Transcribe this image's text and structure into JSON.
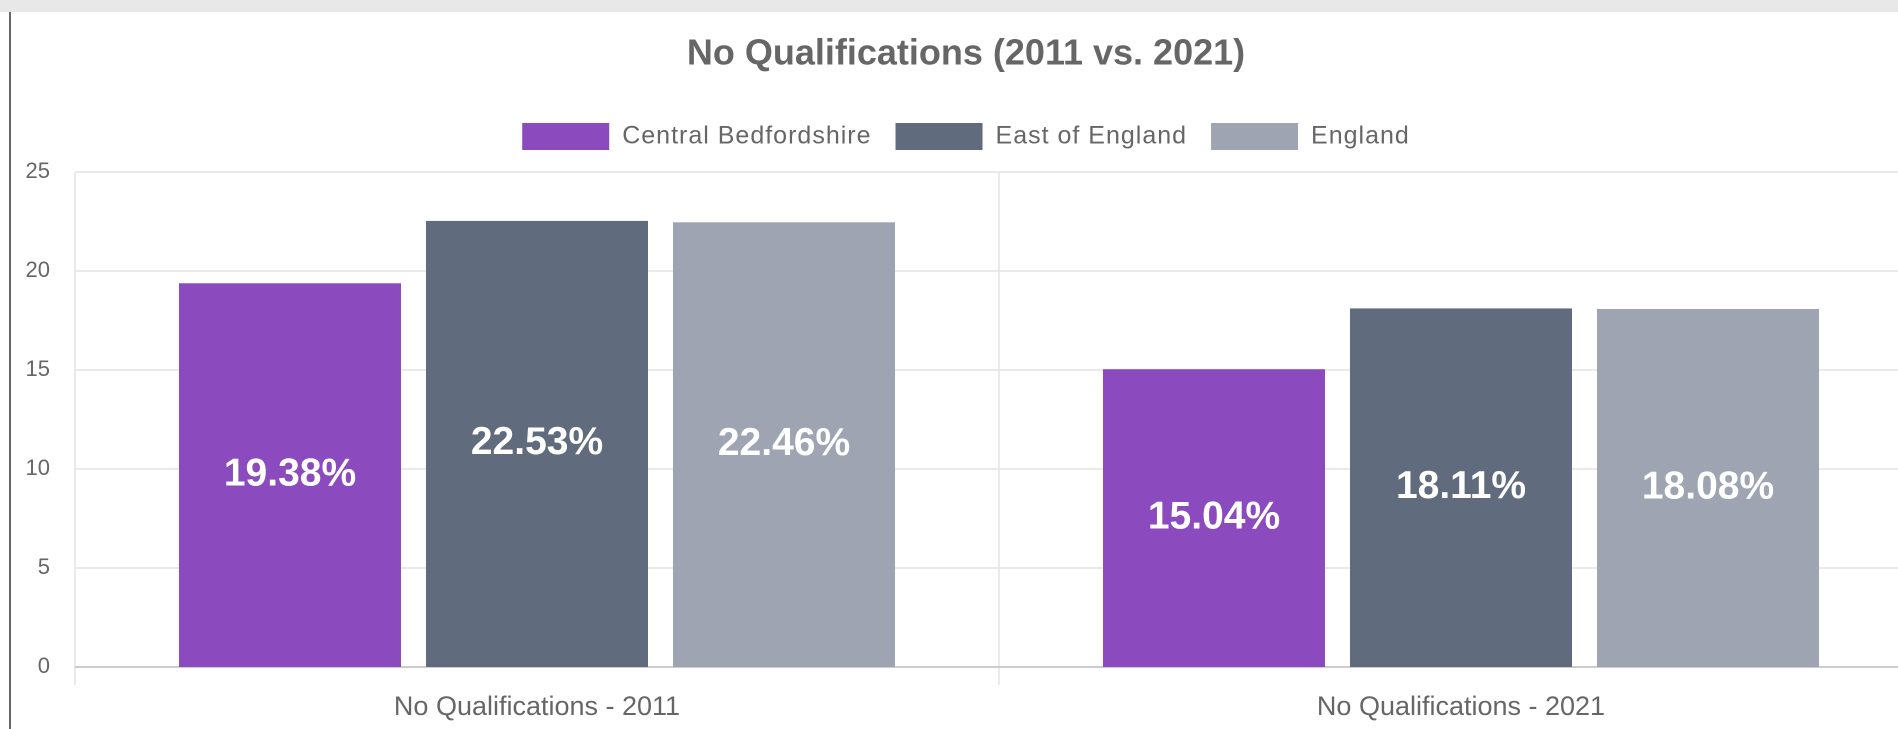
{
  "chart_data": {
    "type": "bar",
    "title": "No Qualifications (2011 vs. 2021)",
    "categories": [
      "No Qualifications - 2011",
      "No Qualifications - 2021"
    ],
    "series": [
      {
        "name": "Central Bedfordshire",
        "color": "#8b4bbf",
        "values": [
          19.38,
          15.04
        ],
        "value_labels": [
          "19.38%",
          "15.04%"
        ]
      },
      {
        "name": "East of England",
        "color": "#606b7d",
        "values": [
          22.53,
          18.11
        ],
        "value_labels": [
          "22.53%",
          "18.11%"
        ]
      },
      {
        "name": "England",
        "color": "#9ea4b2",
        "values": [
          22.46,
          18.08
        ],
        "value_labels": [
          "22.46%",
          "18.08%"
        ]
      }
    ],
    "ylim": [
      0,
      25
    ],
    "yticks": [
      0,
      5,
      10,
      15,
      20,
      25
    ],
    "grid": true,
    "legend": "top"
  }
}
